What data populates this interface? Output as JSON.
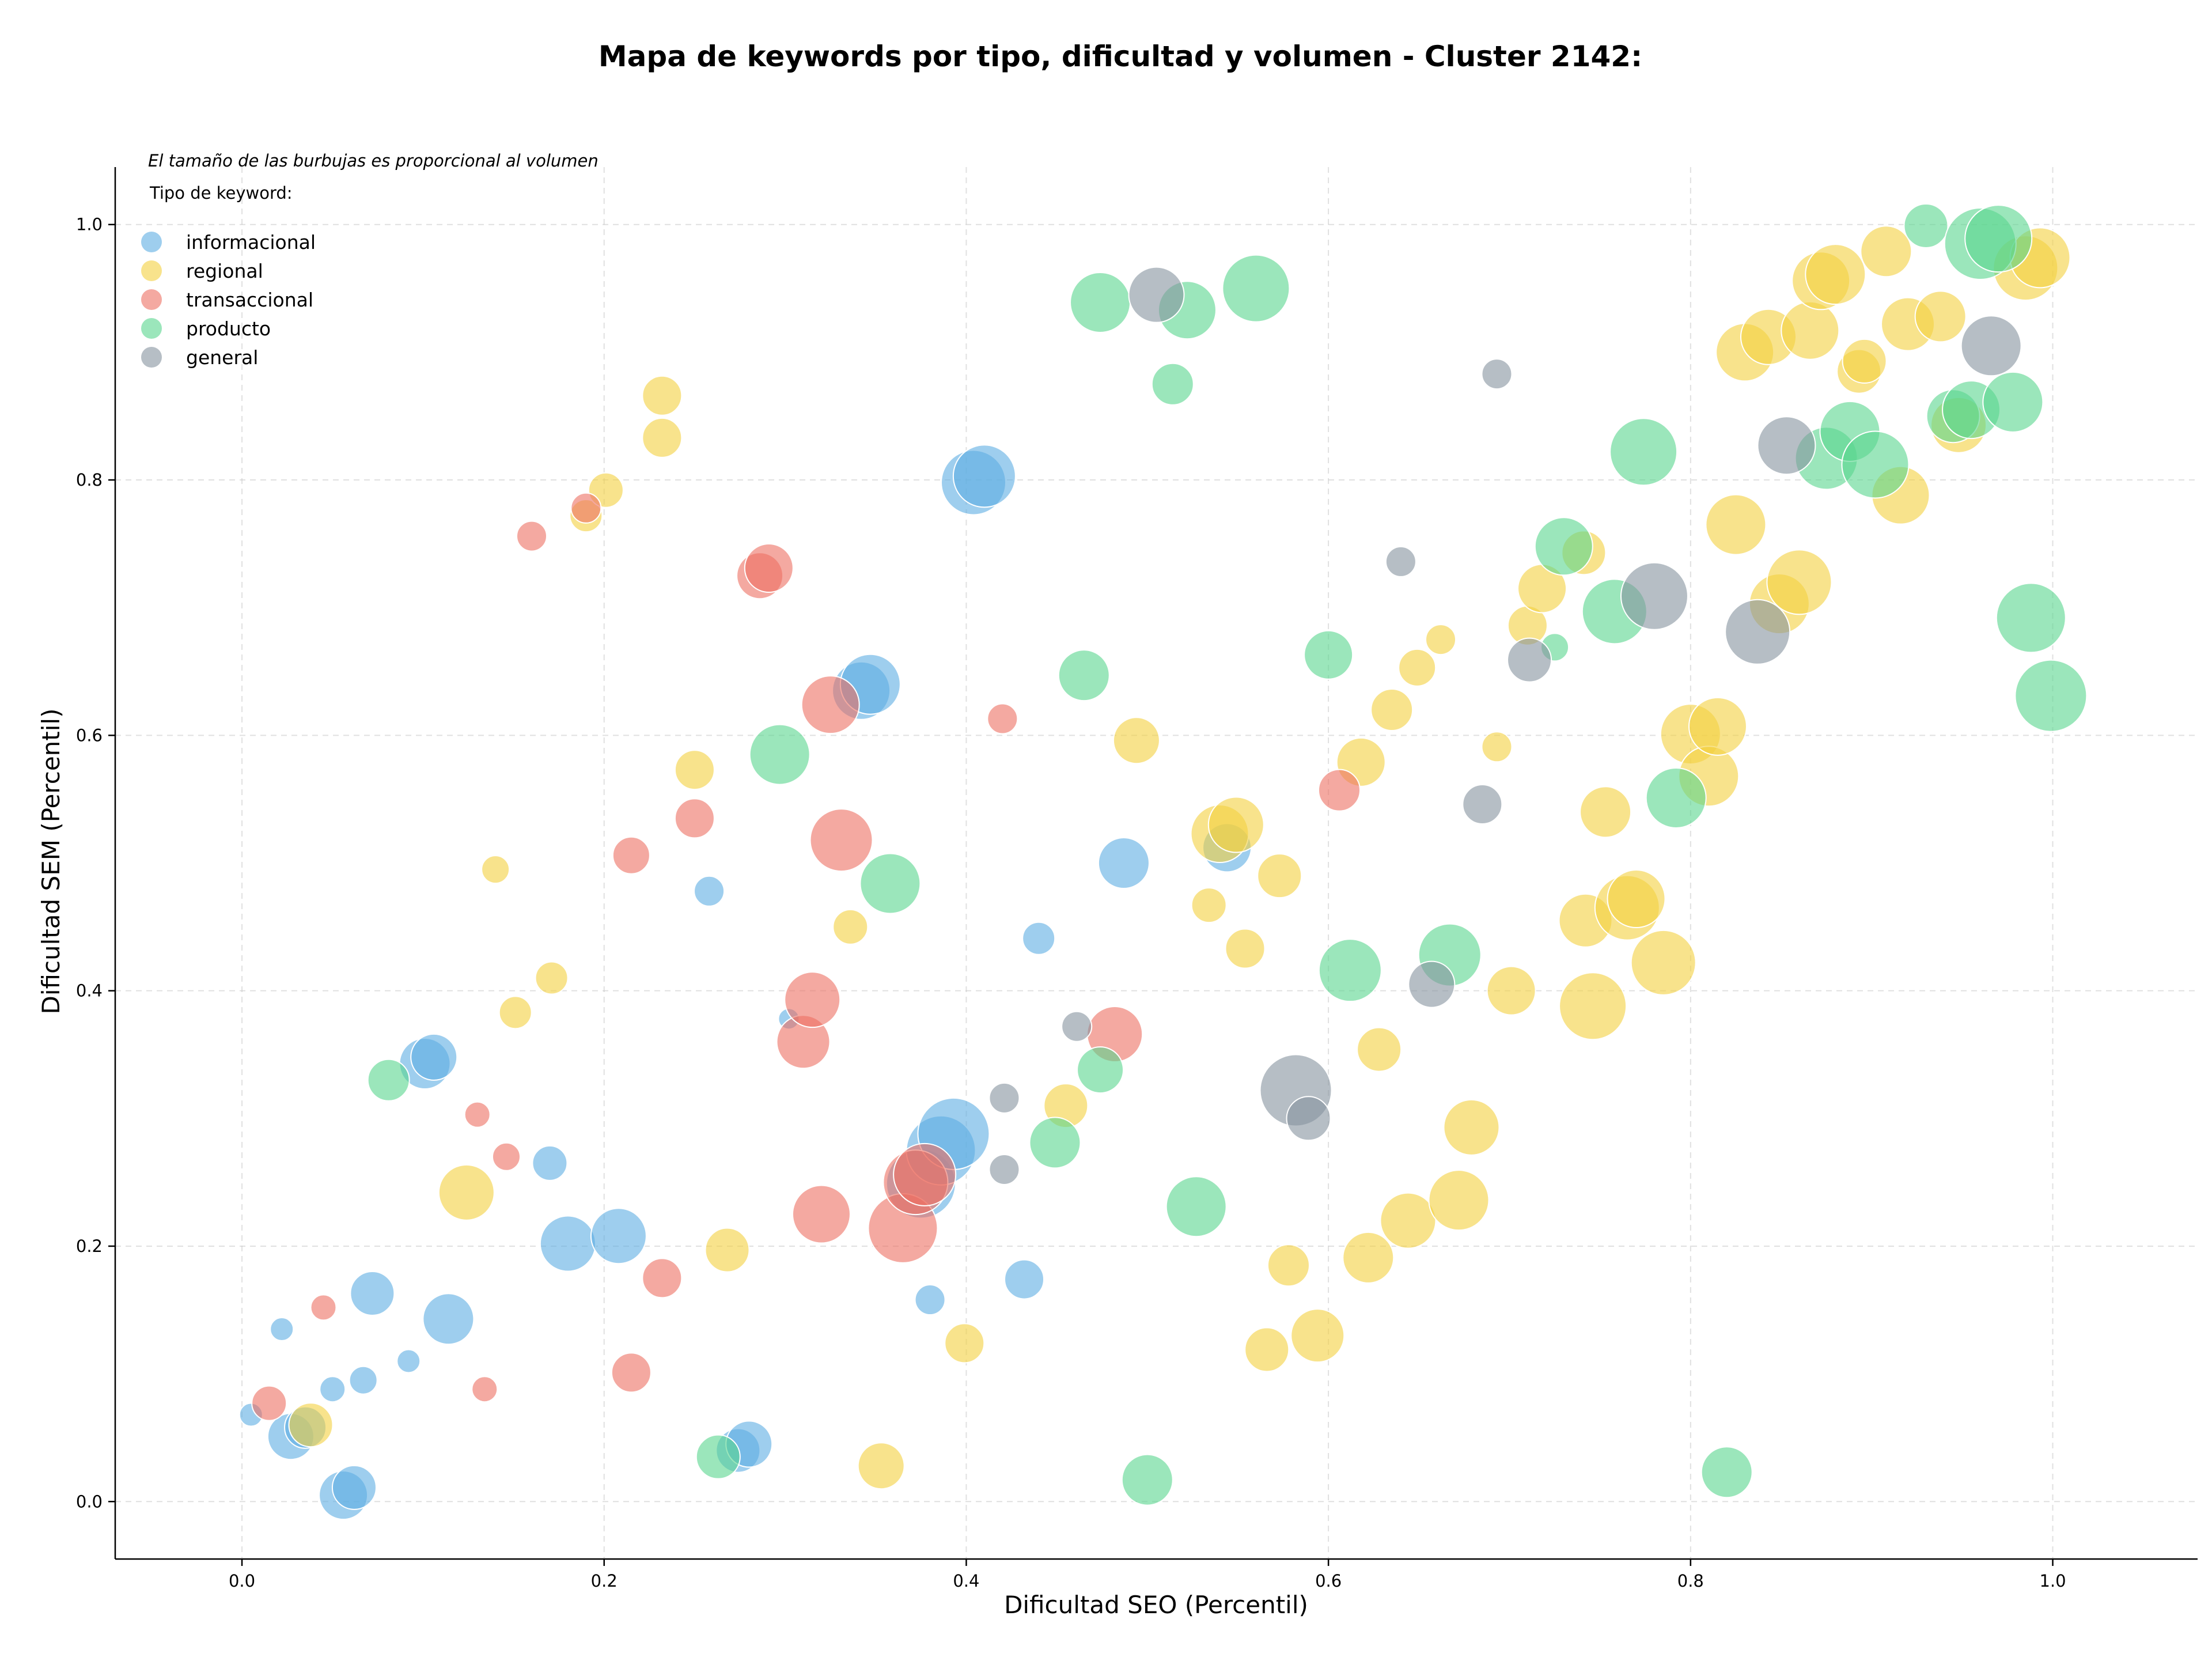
{
  "chart_data": {
    "type": "scatter",
    "title": "Mapa de keywords por tipo, dificultad y volumen - Cluster 2142:",
    "xlabel": "Dificultad SEO (Percentil)",
    "ylabel": "Dificultad SEM (Percentil)",
    "xlim": [
      -0.07,
      1.08
    ],
    "ylim": [
      -0.045,
      1.045
    ],
    "x_ticks": [
      "0.0",
      "0.2",
      "0.4",
      "0.6",
      "0.8",
      "1.0"
    ],
    "y_ticks": [
      "0.0",
      "0.2",
      "0.4",
      "0.6",
      "0.8",
      "1.0"
    ],
    "grid": true,
    "note": "El tamaño de las burbujas es proporcional al volumen",
    "legend": {
      "title": "Tipo de keyword:",
      "position": "top-left"
    },
    "series": [
      {
        "name": "informacional",
        "color": "#5DADE2",
        "points": [
          [
            0.005,
            0.068,
            20
          ],
          [
            0.022,
            0.135,
            20
          ],
          [
            0.027,
            0.051,
            40
          ],
          [
            0.035,
            0.058,
            36
          ],
          [
            0.05,
            0.088,
            22
          ],
          [
            0.056,
            0.005,
            42
          ],
          [
            0.062,
            0.011,
            38
          ],
          [
            0.067,
            0.095,
            24
          ],
          [
            0.072,
            0.163,
            38
          ],
          [
            0.092,
            0.11,
            20
          ],
          [
            0.101,
            0.343,
            44
          ],
          [
            0.106,
            0.348,
            40
          ],
          [
            0.114,
            0.143,
            44
          ],
          [
            0.17,
            0.265,
            30
          ],
          [
            0.18,
            0.202,
            48
          ],
          [
            0.208,
            0.208,
            48
          ],
          [
            0.258,
            0.478,
            26
          ],
          [
            0.274,
            0.04,
            38
          ],
          [
            0.28,
            0.045,
            40
          ],
          [
            0.302,
            0.378,
            18
          ],
          [
            0.342,
            0.635,
            50
          ],
          [
            0.347,
            0.64,
            52
          ],
          [
            0.375,
            0.249,
            60
          ],
          [
            0.386,
            0.275,
            60
          ],
          [
            0.393,
            0.288,
            62
          ],
          [
            0.38,
            0.158,
            26
          ],
          [
            0.404,
            0.798,
            56
          ],
          [
            0.41,
            0.803,
            54
          ],
          [
            0.432,
            0.174,
            34
          ],
          [
            0.44,
            0.441,
            28
          ],
          [
            0.487,
            0.5,
            44
          ],
          [
            0.544,
            0.512,
            42
          ]
        ]
      },
      {
        "name": "regional",
        "color": "#F4D03F",
        "points": [
          [
            0.038,
            0.06,
            38
          ],
          [
            0.124,
            0.242,
            48
          ],
          [
            0.14,
            0.495,
            24
          ],
          [
            0.151,
            0.383,
            28
          ],
          [
            0.171,
            0.41,
            28
          ],
          [
            0.19,
            0.772,
            28
          ],
          [
            0.201,
            0.792,
            30
          ],
          [
            0.232,
            0.866,
            34
          ],
          [
            0.232,
            0.833,
            34
          ],
          [
            0.25,
            0.573,
            34
          ],
          [
            0.268,
            0.197,
            38
          ],
          [
            0.336,
            0.45,
            30
          ],
          [
            0.353,
            0.028,
            40
          ],
          [
            0.399,
            0.124,
            34
          ],
          [
            0.455,
            0.31,
            38
          ],
          [
            0.494,
            0.596,
            40
          ],
          [
            0.534,
            0.467,
            30
          ],
          [
            0.54,
            0.523,
            50
          ],
          [
            0.549,
            0.53,
            48
          ],
          [
            0.554,
            0.433,
            34
          ],
          [
            0.573,
            0.49,
            38
          ],
          [
            0.566,
            0.119,
            38
          ],
          [
            0.578,
            0.185,
            36
          ],
          [
            0.594,
            0.13,
            46
          ],
          [
            0.618,
            0.579,
            42
          ],
          [
            0.622,
            0.191,
            44
          ],
          [
            0.628,
            0.354,
            38
          ],
          [
            0.635,
            0.62,
            36
          ],
          [
            0.644,
            0.22,
            48
          ],
          [
            0.649,
            0.653,
            32
          ],
          [
            0.662,
            0.675,
            26
          ],
          [
            0.672,
            0.236,
            52
          ],
          [
            0.679,
            0.293,
            48
          ],
          [
            0.693,
            0.591,
            26
          ],
          [
            0.701,
            0.4,
            42
          ],
          [
            0.71,
            0.686,
            34
          ],
          [
            0.718,
            0.715,
            42
          ],
          [
            0.741,
            0.743,
            38
          ],
          [
            0.742,
            0.455,
            46
          ],
          [
            0.746,
            0.388,
            58
          ],
          [
            0.753,
            0.54,
            44
          ],
          [
            0.765,
            0.465,
            56
          ],
          [
            0.77,
            0.472,
            50
          ],
          [
            0.785,
            0.422,
            56
          ],
          [
            0.8,
            0.601,
            52
          ],
          [
            0.81,
            0.568,
            52
          ],
          [
            0.815,
            0.607,
            50
          ],
          [
            0.825,
            0.765,
            52
          ],
          [
            0.83,
            0.9,
            50
          ],
          [
            0.843,
            0.912,
            48
          ],
          [
            0.849,
            0.703,
            52
          ],
          [
            0.86,
            0.72,
            56
          ],
          [
            0.866,
            0.917,
            50
          ],
          [
            0.872,
            0.956,
            50
          ],
          [
            0.88,
            0.961,
            52
          ],
          [
            0.893,
            0.885,
            38
          ],
          [
            0.896,
            0.893,
            38
          ],
          [
            0.908,
            0.979,
            44
          ],
          [
            0.92,
            0.922,
            46
          ],
          [
            0.938,
            0.928,
            44
          ],
          [
            0.948,
            0.843,
            48
          ],
          [
            0.916,
            0.788,
            50
          ],
          [
            0.985,
            0.966,
            56
          ],
          [
            0.993,
            0.974,
            52
          ]
        ]
      },
      {
        "name": "transaccional",
        "color": "#EC7063",
        "points": [
          [
            0.015,
            0.077,
            30
          ],
          [
            0.045,
            0.152,
            22
          ],
          [
            0.13,
            0.303,
            22
          ],
          [
            0.134,
            0.088,
            22
          ],
          [
            0.146,
            0.27,
            24
          ],
          [
            0.16,
            0.756,
            26
          ],
          [
            0.19,
            0.778,
            26
          ],
          [
            0.215,
            0.506,
            32
          ],
          [
            0.215,
            0.101,
            34
          ],
          [
            0.25,
            0.535,
            34
          ],
          [
            0.232,
            0.175,
            34
          ],
          [
            0.286,
            0.725,
            40
          ],
          [
            0.291,
            0.731,
            42
          ],
          [
            0.31,
            0.36,
            46
          ],
          [
            0.315,
            0.393,
            48
          ],
          [
            0.32,
            0.225,
            50
          ],
          [
            0.325,
            0.624,
            50
          ],
          [
            0.331,
            0.518,
            54
          ],
          [
            0.365,
            0.214,
            60
          ],
          [
            0.372,
            0.25,
            56
          ],
          [
            0.377,
            0.256,
            54
          ],
          [
            0.42,
            0.613,
            26
          ],
          [
            0.482,
            0.366,
            48
          ],
          [
            0.606,
            0.557,
            36
          ]
        ]
      },
      {
        "name": "producto",
        "color": "#58D68D",
        "points": [
          [
            0.081,
            0.33,
            36
          ],
          [
            0.263,
            0.035,
            38
          ],
          [
            0.297,
            0.585,
            52
          ],
          [
            0.358,
            0.484,
            52
          ],
          [
            0.449,
            0.281,
            44
          ],
          [
            0.465,
            0.647,
            44
          ],
          [
            0.474,
            0.338,
            40
          ],
          [
            0.474,
            0.939,
            52
          ],
          [
            0.5,
            0.017,
            44
          ],
          [
            0.514,
            0.875,
            36
          ],
          [
            0.522,
            0.933,
            50
          ],
          [
            0.527,
            0.231,
            52
          ],
          [
            0.56,
            0.95,
            58
          ],
          [
            0.6,
            0.663,
            42
          ],
          [
            0.612,
            0.416,
            54
          ],
          [
            0.667,
            0.428,
            54
          ],
          [
            0.725,
            0.669,
            24
          ],
          [
            0.73,
            0.748,
            50
          ],
          [
            0.758,
            0.697,
            56
          ],
          [
            0.774,
            0.822,
            58
          ],
          [
            0.792,
            0.551,
            52
          ],
          [
            0.82,
            0.023,
            44
          ],
          [
            0.875,
            0.817,
            54
          ],
          [
            0.888,
            0.838,
            52
          ],
          [
            0.902,
            0.812,
            58
          ],
          [
            0.93,
            0.999,
            38
          ],
          [
            0.945,
            0.85,
            46
          ],
          [
            0.96,
            0.985,
            62
          ],
          [
            0.955,
            0.855,
            50
          ],
          [
            0.97,
            0.989,
            58
          ],
          [
            0.978,
            0.861,
            52
          ],
          [
            0.988,
            0.692,
            60
          ],
          [
            0.999,
            0.631,
            62
          ]
        ]
      },
      {
        "name": "general",
        "color": "#85929E",
        "points": [
          [
            0.421,
            0.316,
            26
          ],
          [
            0.421,
            0.26,
            26
          ],
          [
            0.461,
            0.372,
            26
          ],
          [
            0.505,
            0.945,
            48
          ],
          [
            0.582,
            0.322,
            62
          ],
          [
            0.589,
            0.3,
            38
          ],
          [
            0.64,
            0.736,
            26
          ],
          [
            0.657,
            0.405,
            40
          ],
          [
            0.685,
            0.546,
            34
          ],
          [
            0.693,
            0.883,
            26
          ],
          [
            0.711,
            0.659,
            38
          ],
          [
            0.78,
            0.709,
            58
          ],
          [
            0.837,
            0.681,
            56
          ],
          [
            0.853,
            0.827,
            50
          ],
          [
            0.966,
            0.905,
            52
          ]
        ]
      }
    ]
  }
}
